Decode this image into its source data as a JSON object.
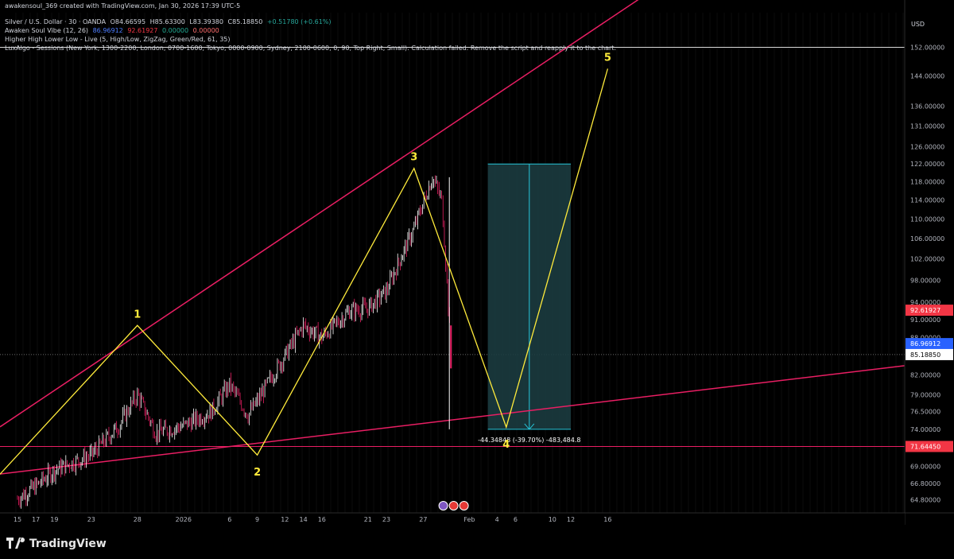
{
  "header": {
    "credit": "awakensoul_369 created with TradingView.com, Jan 30, 2026 17:39 UTC-5",
    "symbol": "Silver / U.S. Dollar · 30 · OANDA",
    "ohlc": {
      "o": "O84.66595",
      "h": "H85.63300",
      "l": "L83.39380",
      "c": "C85.18850",
      "chg": "+0.51780 (+0.61%)"
    },
    "ind1": {
      "name": "Awaken Soul Vibe (12, 26)",
      "v1": "86.96912",
      "v2": "92.61927",
      "v3": "0.00000",
      "v4": "0.00000"
    },
    "ind2": "Higher High Lower Low - Live (5, High/Low, ZigZag, Green/Red, 61, 35)",
    "ind3": "LuxAlgo - Sessions (New York, 1300-2200, London, 0700-1600, Tokyo, 0000-0900, Sydney, 2100-0600, 0, 90, Top Right, Small): Calculation failed. Remove the script and reapply it to the chart."
  },
  "currency": "USD",
  "brand": "TradingView",
  "position_label": "-44.34848 (-39.70%) -483,484.8",
  "price_tags": {
    "vibe_a": "92.61927",
    "vibe_b": "86.96912",
    "last": "85.18850",
    "level": "71.64450"
  },
  "colors": {
    "background": "#000000",
    "candle_up": "#ffffff",
    "candle_down": "#e91e63",
    "trendline": "#e91e63",
    "wave": "#ffeb3b",
    "position_box": "#1b3b3f",
    "position_edge": "#26c6da",
    "tag_red": "#f23645",
    "tag_blue": "#2962ff"
  },
  "chart_data": {
    "type": "line",
    "title": "Silver / U.S. Dollar · 30 · OANDA",
    "y_axis_label": "USD",
    "y_ticks": [
      "152.00000",
      "144.00000",
      "136.00000",
      "131.00000",
      "126.00000",
      "122.00000",
      "118.00000",
      "114.00000",
      "110.00000",
      "106.00000",
      "102.00000",
      "98.00000",
      "94.00000",
      "91.00000",
      "88.00000",
      "85.00000",
      "82.00000",
      "79.00000",
      "76.50000",
      "74.00000",
      "69.00000",
      "66.80000",
      "64.80000"
    ],
    "x_ticks": [
      "15",
      "17",
      "19",
      "23",
      "28",
      "2026",
      "6",
      "9",
      "12",
      "14",
      "16",
      "21",
      "23",
      "27",
      "Feb",
      "4",
      "6",
      "10",
      "12",
      "16"
    ],
    "price_path": {
      "x_dates": [
        "Dec 15",
        "Dec 17",
        "Dec 19",
        "Dec 23",
        "Dec 26",
        "Dec 28",
        "Dec 30",
        "Jan 1",
        "Jan 4",
        "Jan 6",
        "Jan 8",
        "Jan 9",
        "Jan 12",
        "Jan 14",
        "Jan 16",
        "Jan 19",
        "Jan 21",
        "Jan 23",
        "Jan 26",
        "Jan 28",
        "Jan 29",
        "Jan 30"
      ],
      "close": [
        64.9,
        66.5,
        68.5,
        70.5,
        74.5,
        79.0,
        73.5,
        74.5,
        76.5,
        80.5,
        76.0,
        78.0,
        85.0,
        90.0,
        88.0,
        92.5,
        93.0,
        96.0,
        108.0,
        119.0,
        114.0,
        85.2
      ]
    },
    "waves": [
      {
        "label": "1",
        "date": "Dec 28",
        "price": 90.0
      },
      {
        "label": "2",
        "date": "Jan 9",
        "price": 70.5
      },
      {
        "label": "3",
        "date": "Jan 26",
        "price": 121.0
      },
      {
        "label": "4",
        "date": "Feb 5",
        "price": 74.3
      },
      {
        "label": "5",
        "date": "Feb 16",
        "price": 146.0
      }
    ],
    "trendlines": [
      {
        "name": "upper",
        "from": {
          "date": "Dec 15",
          "price": 76.0
        },
        "to": {
          "date": "Feb 16",
          "price": 160.0
        }
      },
      {
        "name": "lower",
        "from": {
          "date": "Dec 13",
          "price": 68.0
        },
        "to": {
          "date": "Feb 22",
          "price": 79.0
        }
      }
    ],
    "horizontal_levels": [
      152.0,
      85.1885,
      71.6445
    ],
    "short_position": {
      "entry": 122.0,
      "target": 74.0,
      "from": "Feb 3",
      "to": "Feb 12"
    },
    "ylim": [
      63.5,
      158.0
    ]
  }
}
